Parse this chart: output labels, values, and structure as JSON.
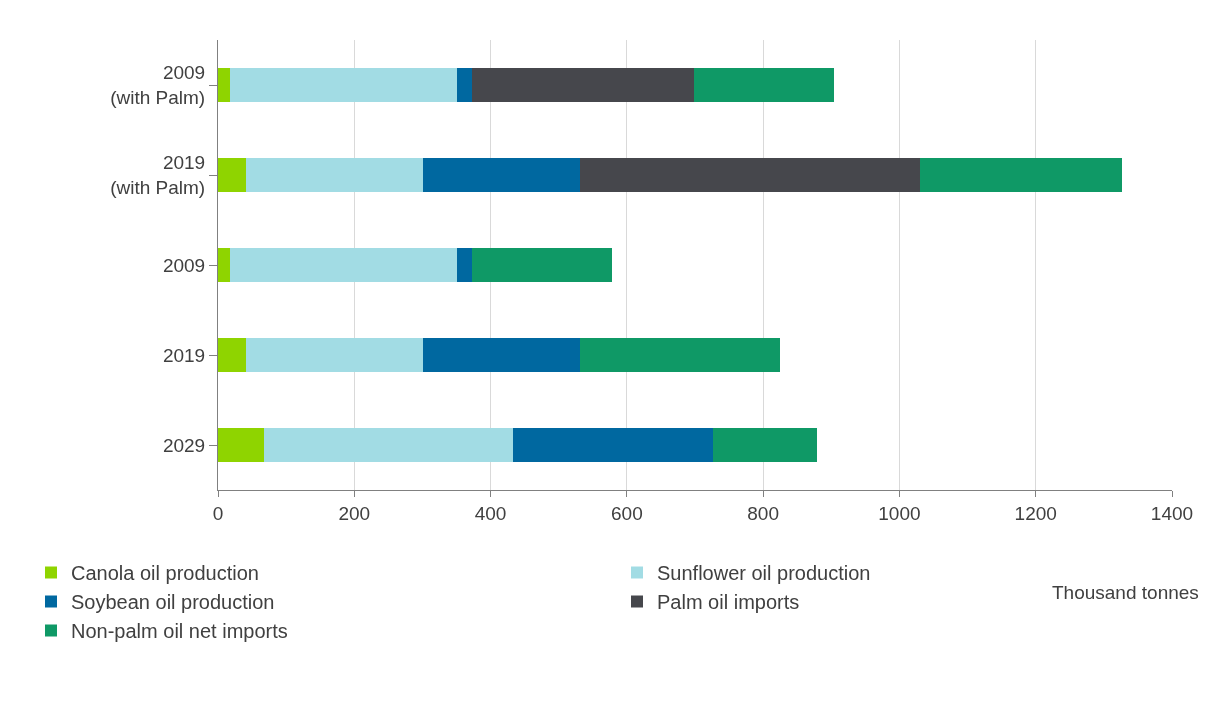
{
  "chart_data": {
    "type": "bar",
    "orientation": "horizontal",
    "stacked": true,
    "xlabel": "Thousand tonnes",
    "categories": [
      "2009 (with Palm)",
      "2019 (with Palm)",
      "2009",
      "2019",
      "2029"
    ],
    "series": [
      {
        "name": "Canola oil production",
        "color": "#8fd400",
        "values": [
          17,
          41,
          17,
          41,
          68
        ]
      },
      {
        "name": "Sunflower oil production",
        "color": "#a2dce4",
        "values": [
          333,
          260,
          333,
          260,
          365
        ]
      },
      {
        "name": "Soybean oil production",
        "color": "#0068a0",
        "values": [
          23,
          230,
          23,
          230,
          293
        ]
      },
      {
        "name": "Palm oil imports",
        "color": "#46474c",
        "values": [
          326,
          499,
          null,
          null,
          null
        ]
      },
      {
        "name": "Non-palm oil net imports",
        "color": "#0f9966",
        "values": [
          205,
          297,
          205,
          294,
          153
        ]
      }
    ],
    "xlim": [
      0,
      1400
    ],
    "xticks": [
      0,
      200,
      400,
      600,
      800,
      1000,
      1200,
      1400
    ],
    "grid": "x",
    "legend": "bottom"
  }
}
